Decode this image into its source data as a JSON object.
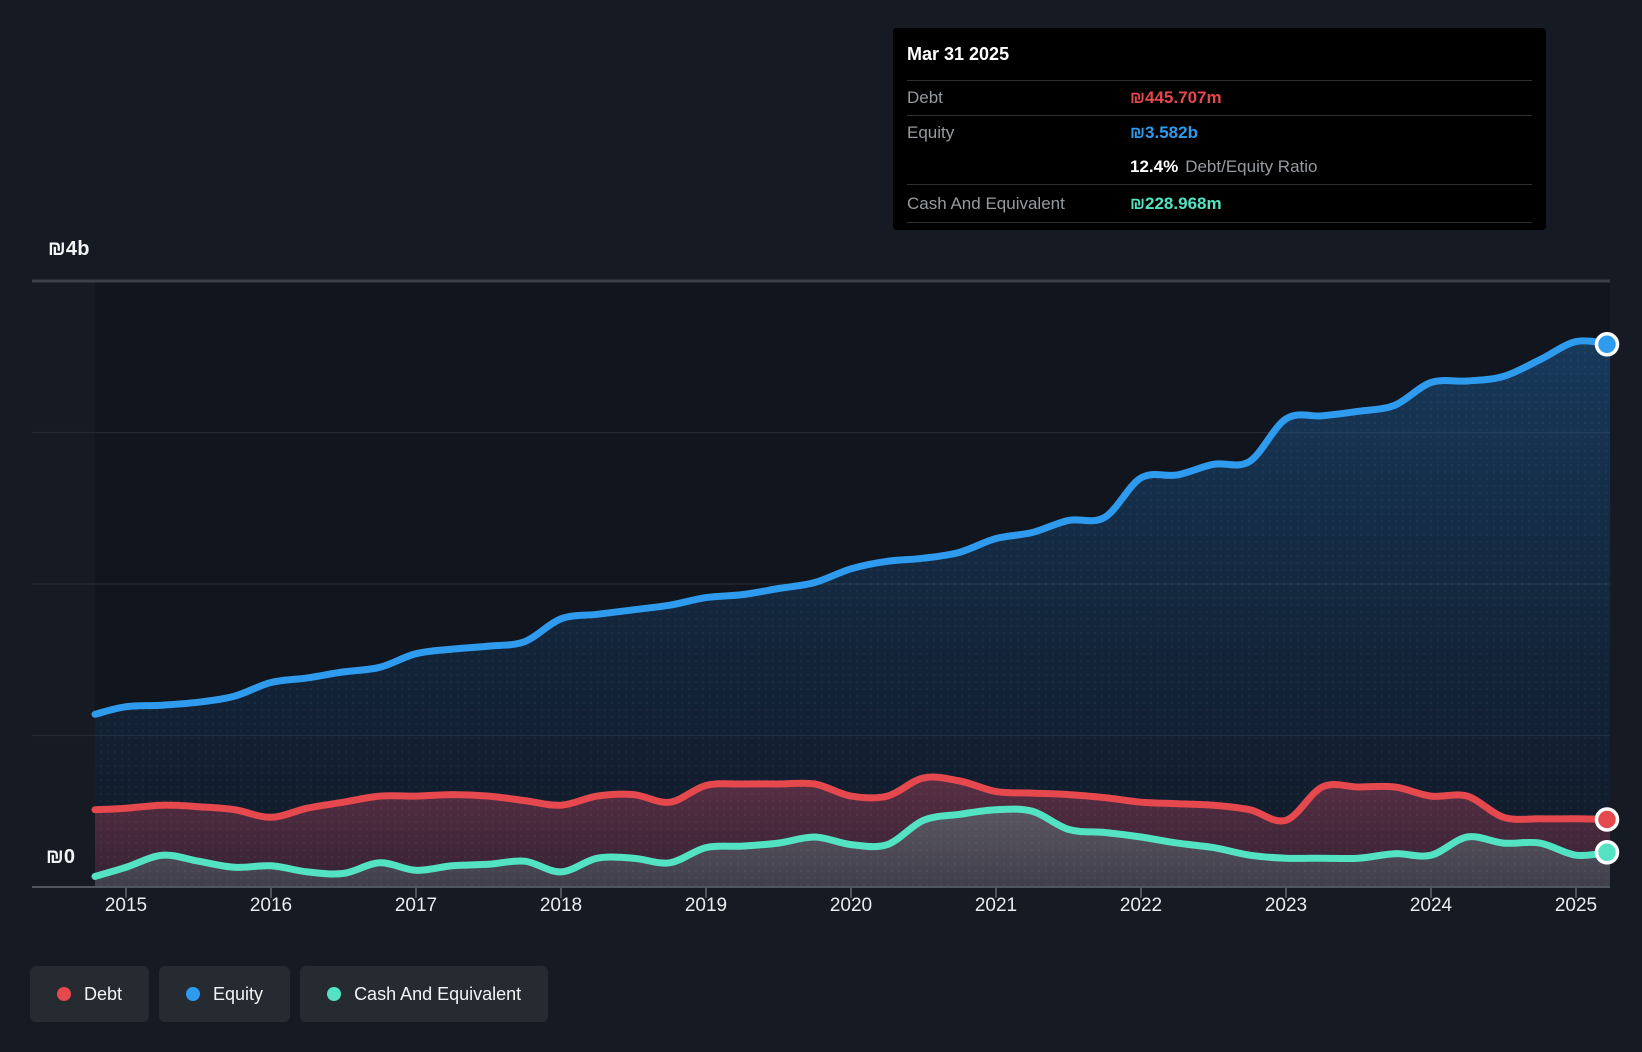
{
  "chart_data": {
    "type": "area",
    "x_axis": {
      "ticks": [
        "2015",
        "2016",
        "2017",
        "2018",
        "2019",
        "2020",
        "2021",
        "2022",
        "2023",
        "2024",
        "2025"
      ]
    },
    "y_axis": {
      "min": 0,
      "max": 4,
      "unit": "₪b",
      "top_label": "₪4b",
      "bottom_label": "₪0",
      "gridline_values": [
        4,
        3,
        2,
        1,
        0
      ]
    },
    "t_start": 2014.75,
    "t_step_years": 0.25,
    "values_unit": "₪ billions",
    "series": [
      {
        "name": "Debt",
        "color": "#e5484d",
        "values": [
          0.51,
          0.52,
          0.54,
          0.53,
          0.51,
          0.46,
          0.52,
          0.56,
          0.6,
          0.6,
          0.61,
          0.6,
          0.57,
          0.54,
          0.6,
          0.61,
          0.56,
          0.67,
          0.68,
          0.68,
          0.68,
          0.6,
          0.6,
          0.72,
          0.7,
          0.63,
          0.62,
          0.61,
          0.59,
          0.56,
          0.55,
          0.54,
          0.51,
          0.44,
          0.66,
          0.66,
          0.66,
          0.6,
          0.6,
          0.46,
          0.45,
          0.45,
          0.4457
        ]
      },
      {
        "name": "Equity",
        "color": "#2e9bef",
        "values": [
          1.14,
          1.19,
          1.2,
          1.22,
          1.26,
          1.35,
          1.38,
          1.42,
          1.45,
          1.54,
          1.57,
          1.59,
          1.62,
          1.77,
          1.8,
          1.83,
          1.86,
          1.91,
          1.93,
          1.97,
          2.01,
          2.1,
          2.15,
          2.17,
          2.21,
          2.3,
          2.34,
          2.42,
          2.44,
          2.7,
          2.72,
          2.79,
          2.81,
          3.09,
          3.11,
          3.14,
          3.18,
          3.33,
          3.34,
          3.37,
          3.48,
          3.6,
          3.582
        ]
      },
      {
        "name": "Cash And Equivalent",
        "color": "#54e3c2",
        "values": [
          0.07,
          0.13,
          0.21,
          0.17,
          0.13,
          0.14,
          0.1,
          0.09,
          0.16,
          0.11,
          0.14,
          0.15,
          0.17,
          0.1,
          0.19,
          0.19,
          0.16,
          0.26,
          0.27,
          0.29,
          0.33,
          0.28,
          0.28,
          0.44,
          0.48,
          0.51,
          0.5,
          0.38,
          0.36,
          0.33,
          0.29,
          0.26,
          0.21,
          0.19,
          0.19,
          0.19,
          0.22,
          0.21,
          0.33,
          0.29,
          0.29,
          0.21,
          0.229
        ]
      }
    ],
    "legend_position": "bottom-left",
    "grid": "horizontal-only"
  },
  "tooltip": {
    "title": "Mar 31 2025",
    "debt_label": "Debt",
    "debt_value": "₪445.707m",
    "equity_label": "Equity",
    "equity_value": "₪3.582b",
    "ratio_value": "12.4%",
    "ratio_label": "Debt/Equity Ratio",
    "cash_label": "Cash And Equivalent",
    "cash_value": "₪228.968m"
  },
  "legend": {
    "items": [
      {
        "label": "Debt"
      },
      {
        "label": "Equity"
      },
      {
        "label": "Cash And Equivalent"
      }
    ]
  }
}
